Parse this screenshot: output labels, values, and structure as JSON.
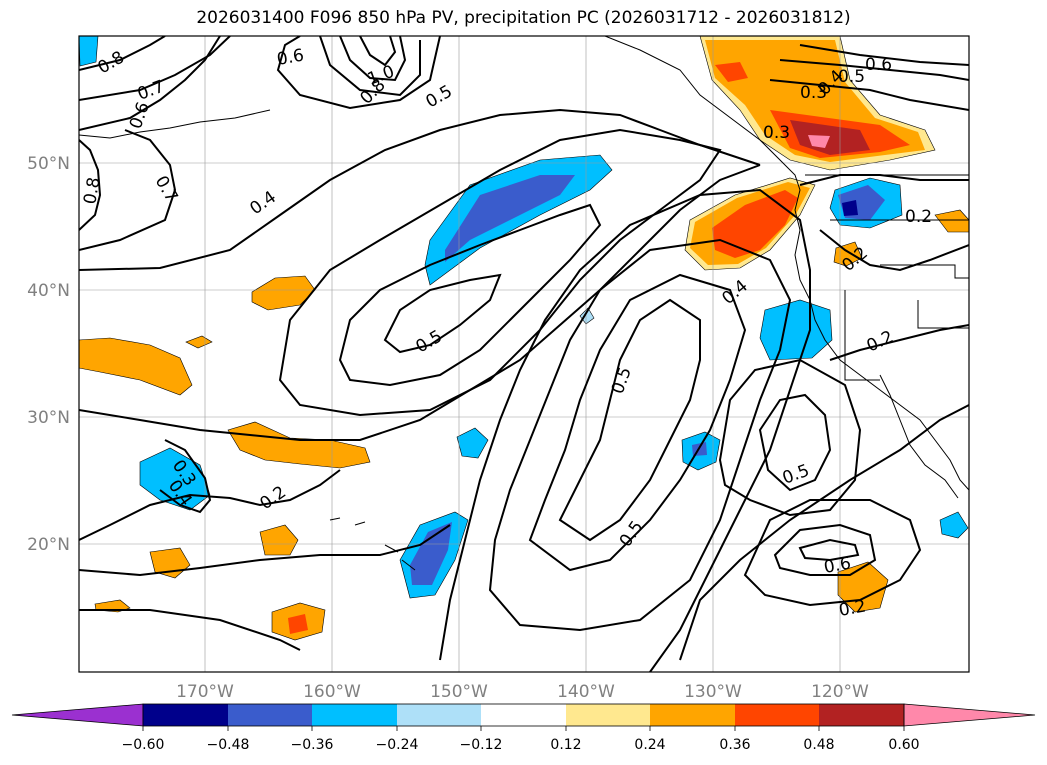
{
  "title": "2026031400 F096 850 hPa PV, precipitation PC (2026031712 - 2026031812)",
  "map": {
    "lon_labels": [
      "170°W",
      "160°W",
      "150°W",
      "140°W",
      "130°W",
      "120°W"
    ],
    "lat_labels": [
      "50°N",
      "40°N",
      "30°N",
      "20°N"
    ],
    "grid": true
  },
  "contour_labels": [
    "0.8",
    "0.6",
    "0.7",
    "0.6",
    "1.0",
    "0.8",
    "0.5",
    "0.6",
    "0.5",
    "0.4",
    "0.3",
    "0.3",
    "0.8",
    "0.7",
    "0.4",
    "0.5",
    "0.5",
    "0.4",
    "0.2",
    "0.2",
    "0.2",
    "0.3",
    "0.4",
    "0.2",
    "0.5",
    "0.5",
    "0.6",
    "0.2"
  ],
  "colorbar": {
    "ticks": [
      "−0.60",
      "−0.48",
      "−0.36",
      "−0.24",
      "−0.12",
      "0.12",
      "0.24",
      "0.36",
      "0.48",
      "0.60"
    ],
    "colors": [
      "#9b30d0",
      "#00008b",
      "#3a5ccc",
      "#00bfff",
      "#aee0f8",
      "#ffffff",
      "#ffe88f",
      "#ffa500",
      "#ff4500",
      "#b22222",
      "#ff88aa"
    ]
  },
  "colors": {
    "orange": "#ffa500",
    "light_yellow": "#ffe88f",
    "red_orange": "#ff4500",
    "dark_red": "#b22222",
    "pink": "#ff88aa",
    "deep_sky": "#00bfff",
    "royal_blue": "#3a5ccc",
    "navy": "#00008b",
    "light_blue": "#aee0f8"
  }
}
